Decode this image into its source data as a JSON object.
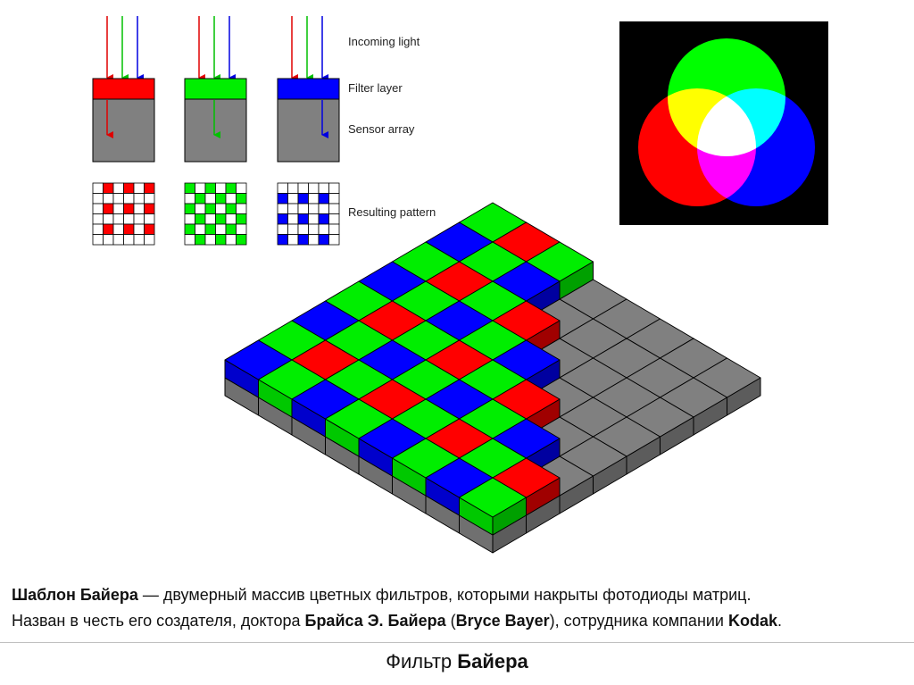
{
  "legend_labels": {
    "incoming": "Incoming light",
    "filter": "Filter layer",
    "sensor": "Sensor array",
    "pattern": "Resulting pattern"
  },
  "colors": {
    "red": "#ff0000",
    "green": "#00ee00",
    "blue": "#0000ff",
    "gray": "#808080",
    "black": "#000000"
  },
  "description": {
    "line1_bold": "Шаблон Байера",
    "line1_rest": " — двумерный массив цветных фильтров, которыми накрыты фотодиоды матриц.",
    "line2_a": "Назван в честь его создателя, доктора ",
    "line2_bold1": "Брайса Э. Байера",
    "line2_b": " (",
    "line2_bold2": "Bryce Bayer",
    "line2_c": "), сотрудника компании ",
    "line2_bold3": "Kodak",
    "line2_d": "."
  },
  "footer": {
    "title_plain": "Фильтр ",
    "title_bold": "Байера"
  }
}
